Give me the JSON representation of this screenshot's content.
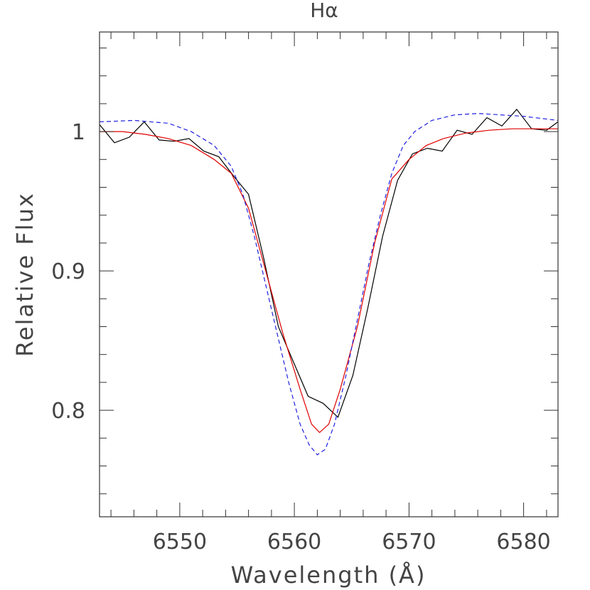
{
  "chart_data": {
    "type": "line",
    "title": "Hα",
    "xlabel": "Wavelength (Å)",
    "ylabel": "Relative Flux",
    "xlim": [
      6543,
      6583
    ],
    "ylim": [
      0.7235,
      1.0715
    ],
    "xticks": [
      6550,
      6560,
      6570,
      6580
    ],
    "xtick_labels": [
      "6550",
      "6560",
      "6570",
      "6580"
    ],
    "yticks": [
      0.8,
      0.9,
      1.0
    ],
    "ytick_labels": [
      "0.8",
      "0.9",
      "1"
    ],
    "grid": false,
    "series": [
      {
        "color": "#000000",
        "dash": "",
        "x": [
          6543,
          6544.3,
          6545.6,
          6546.9,
          6548.2,
          6549.5,
          6550.8,
          6552.1,
          6553.4,
          6554.7,
          6556,
          6557.3,
          6558.6,
          6559.9,
          6561.2,
          6562.5,
          6563.8,
          6565.1,
          6566.4,
          6567.7,
          6569,
          6570.3,
          6571.6,
          6572.9,
          6574.2,
          6575.5,
          6576.8,
          6578.1,
          6579.4,
          6580.7,
          6582,
          6583
        ],
        "y": [
          1.005,
          0.992,
          0.996,
          1.007,
          0.994,
          0.993,
          0.995,
          0.986,
          0.982,
          0.968,
          0.955,
          0.91,
          0.86,
          0.835,
          0.81,
          0.805,
          0.795,
          0.825,
          0.873,
          0.925,
          0.965,
          0.984,
          0.988,
          0.986,
          1.001,
          0.998,
          1.01,
          1.004,
          1.016,
          1.002,
          1.001,
          1.007
        ]
      },
      {
        "color": "#e00000",
        "dash": "",
        "x": [
          6543,
          6545,
          6547,
          6549,
          6551,
          6553,
          6554.5,
          6556,
          6557.5,
          6559,
          6560.5,
          6561.5,
          6562.2,
          6563,
          6564,
          6565.5,
          6567,
          6568.5,
          6570,
          6571.5,
          6573,
          6575,
          6577,
          6579,
          6581,
          6583
        ],
        "y": [
          1.0,
          1.0,
          0.998,
          0.995,
          0.99,
          0.98,
          0.97,
          0.945,
          0.9,
          0.855,
          0.815,
          0.79,
          0.784,
          0.79,
          0.815,
          0.86,
          0.92,
          0.966,
          0.98,
          0.99,
          0.995,
          0.999,
          1.001,
          1.002,
          1.002,
          1.002
        ]
      },
      {
        "color": "#2020e0",
        "dash": "6,4",
        "x": [
          6543,
          6546,
          6549,
          6551,
          6553,
          6554.5,
          6555.5,
          6556.5,
          6557.5,
          6558.5,
          6559.5,
          6560.5,
          6561.3,
          6562,
          6562.7,
          6563.5,
          6564.5,
          6565.5,
          6566.5,
          6567.5,
          6568.5,
          6569.5,
          6570.5,
          6572,
          6574,
          6576,
          6578,
          6580,
          6583
        ],
        "y": [
          1.007,
          1.008,
          1.006,
          1.0,
          0.99,
          0.975,
          0.955,
          0.925,
          0.89,
          0.855,
          0.82,
          0.79,
          0.775,
          0.768,
          0.772,
          0.79,
          0.825,
          0.865,
          0.905,
          0.94,
          0.97,
          0.99,
          1.0,
          1.008,
          1.012,
          1.013,
          1.012,
          1.011,
          1.008
        ]
      }
    ]
  }
}
